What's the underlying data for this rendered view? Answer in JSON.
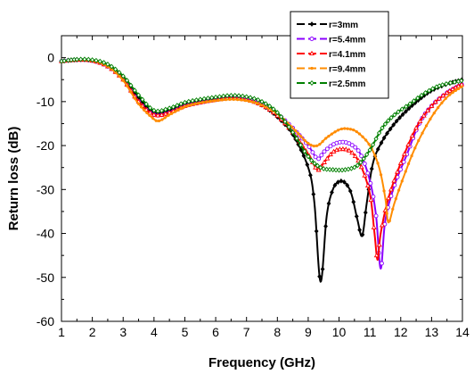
{
  "chart_data": {
    "type": "line",
    "title": "",
    "xlabel": "Frequency (GHz)",
    "ylabel": "Return loss (dB)",
    "xlim": [
      1,
      14
    ],
    "ylim": [
      -60,
      5
    ],
    "xticks": [
      "1",
      "2",
      "3",
      "4",
      "5",
      "6",
      "7",
      "8",
      "9",
      "10",
      "11",
      "12",
      "13",
      "14"
    ],
    "yticks": [
      "0",
      "-10",
      "-20",
      "-30",
      "-40",
      "-50",
      "-60"
    ],
    "grid": false,
    "legend_position": "top-right",
    "series": [
      {
        "name": "r=3mm",
        "color": "#000000",
        "marker": "diamond",
        "points": [
          [
            1,
            -0.8
          ],
          [
            1.5,
            -0.5
          ],
          [
            2,
            -0.6
          ],
          [
            2.5,
            -1.8
          ],
          [
            3,
            -4.5
          ],
          [
            3.5,
            -9
          ],
          [
            4,
            -12.5
          ],
          [
            4.5,
            -12
          ],
          [
            5,
            -10.5
          ],
          [
            5.5,
            -9.8
          ],
          [
            6,
            -9.3
          ],
          [
            6.5,
            -9
          ],
          [
            7,
            -9.5
          ],
          [
            7.5,
            -10.8
          ],
          [
            8,
            -13.5
          ],
          [
            8.5,
            -17.5
          ],
          [
            9,
            -25
          ],
          [
            9.2,
            -33
          ],
          [
            9.4,
            -51
          ],
          [
            9.6,
            -36
          ],
          [
            9.8,
            -30
          ],
          [
            10,
            -28.2
          ],
          [
            10.2,
            -28.5
          ],
          [
            10.4,
            -31
          ],
          [
            10.6,
            -37
          ],
          [
            10.75,
            -40.5
          ],
          [
            10.9,
            -33
          ],
          [
            11.1,
            -24
          ],
          [
            11.4,
            -19
          ],
          [
            11.8,
            -15
          ],
          [
            12.2,
            -12
          ],
          [
            12.6,
            -9.5
          ],
          [
            13,
            -7.5
          ],
          [
            13.5,
            -6
          ],
          [
            14,
            -5
          ]
        ]
      },
      {
        "name": "r=5.4mm",
        "color": "#8b00ff",
        "marker": "circle",
        "points": [
          [
            1,
            -0.8
          ],
          [
            1.5,
            -0.5
          ],
          [
            2,
            -0.7
          ],
          [
            2.5,
            -2
          ],
          [
            3,
            -5
          ],
          [
            3.5,
            -10
          ],
          [
            4,
            -13
          ],
          [
            4.5,
            -12.5
          ],
          [
            5,
            -11
          ],
          [
            5.5,
            -10.2
          ],
          [
            6,
            -9.6
          ],
          [
            6.5,
            -9.2
          ],
          [
            7,
            -9.5
          ],
          [
            7.5,
            -10.5
          ],
          [
            8,
            -12.8
          ],
          [
            8.5,
            -16
          ],
          [
            9,
            -20
          ],
          [
            9.3,
            -23
          ],
          [
            9.5,
            -21.5
          ],
          [
            9.8,
            -19.8
          ],
          [
            10.1,
            -19.2
          ],
          [
            10.4,
            -19.8
          ],
          [
            10.7,
            -22
          ],
          [
            11,
            -28
          ],
          [
            11.2,
            -36
          ],
          [
            11.35,
            -48
          ],
          [
            11.5,
            -37
          ],
          [
            11.8,
            -29
          ],
          [
            12.2,
            -22
          ],
          [
            12.6,
            -15
          ],
          [
            13,
            -11
          ],
          [
            13.5,
            -8
          ],
          [
            14,
            -6
          ]
        ]
      },
      {
        "name": "r=4.1mm",
        "color": "#ff0000",
        "marker": "triangle",
        "points": [
          [
            1,
            -0.8
          ],
          [
            1.5,
            -0.5
          ],
          [
            2,
            -0.7
          ],
          [
            2.5,
            -2
          ],
          [
            3,
            -5
          ],
          [
            3.5,
            -10
          ],
          [
            4,
            -13
          ],
          [
            4.5,
            -12.5
          ],
          [
            5,
            -11
          ],
          [
            5.5,
            -10.2
          ],
          [
            6,
            -9.6
          ],
          [
            6.5,
            -9.2
          ],
          [
            7,
            -9.6
          ],
          [
            7.5,
            -10.8
          ],
          [
            8,
            -13.2
          ],
          [
            8.5,
            -17
          ],
          [
            9,
            -22
          ],
          [
            9.3,
            -25.5
          ],
          [
            9.5,
            -24
          ],
          [
            9.8,
            -21.5
          ],
          [
            10.1,
            -20.8
          ],
          [
            10.4,
            -21.5
          ],
          [
            10.7,
            -24.5
          ],
          [
            11,
            -31
          ],
          [
            11.15,
            -40
          ],
          [
            11.25,
            -46
          ],
          [
            11.35,
            -40
          ],
          [
            11.6,
            -32
          ],
          [
            12,
            -24
          ],
          [
            12.5,
            -16
          ],
          [
            13,
            -11
          ],
          [
            13.5,
            -8
          ],
          [
            14,
            -6
          ]
        ]
      },
      {
        "name": "r=9.4mm",
        "color": "#ff8c00",
        "marker": "dot",
        "points": [
          [
            1,
            -0.8
          ],
          [
            1.5,
            -0.5
          ],
          [
            2,
            -0.7
          ],
          [
            2.5,
            -2
          ],
          [
            3,
            -5.2
          ],
          [
            3.5,
            -10.5
          ],
          [
            4,
            -14
          ],
          [
            4.2,
            -14.3
          ],
          [
            4.5,
            -13
          ],
          [
            5,
            -11.2
          ],
          [
            5.5,
            -10.3
          ],
          [
            6,
            -9.8
          ],
          [
            6.5,
            -9.5
          ],
          [
            7,
            -9.8
          ],
          [
            7.5,
            -10.8
          ],
          [
            8,
            -12.8
          ],
          [
            8.5,
            -16
          ],
          [
            9,
            -19.5
          ],
          [
            9.3,
            -20
          ],
          [
            9.6,
            -18.2
          ],
          [
            10,
            -16.4
          ],
          [
            10.3,
            -16.2
          ],
          [
            10.6,
            -17
          ],
          [
            11,
            -20
          ],
          [
            11.3,
            -25
          ],
          [
            11.5,
            -32
          ],
          [
            11.6,
            -37.5
          ],
          [
            11.8,
            -33
          ],
          [
            12.1,
            -27
          ],
          [
            12.5,
            -20
          ],
          [
            13,
            -13.5
          ],
          [
            13.5,
            -9
          ],
          [
            14,
            -6.5
          ]
        ]
      },
      {
        "name": "r=2.5mm",
        "color": "#008000",
        "marker": "diamond-open",
        "points": [
          [
            1,
            -0.8
          ],
          [
            1.5,
            -0.4
          ],
          [
            2,
            -0.5
          ],
          [
            2.5,
            -1.5
          ],
          [
            3,
            -4.2
          ],
          [
            3.5,
            -8.5
          ],
          [
            4,
            -12
          ],
          [
            4.5,
            -11.5
          ],
          [
            5,
            -10.2
          ],
          [
            5.5,
            -9.5
          ],
          [
            6,
            -9
          ],
          [
            6.5,
            -8.6
          ],
          [
            7,
            -8.9
          ],
          [
            7.5,
            -10
          ],
          [
            8,
            -12.5
          ],
          [
            8.5,
            -17
          ],
          [
            9,
            -22.5
          ],
          [
            9.4,
            -25
          ],
          [
            9.8,
            -25.5
          ],
          [
            10.2,
            -25.5
          ],
          [
            10.6,
            -24.5
          ],
          [
            11,
            -21
          ],
          [
            11.4,
            -16
          ],
          [
            11.8,
            -13
          ],
          [
            12.3,
            -10.5
          ],
          [
            12.8,
            -8
          ],
          [
            13.3,
            -6.3
          ],
          [
            14,
            -5.2
          ]
        ]
      }
    ]
  }
}
